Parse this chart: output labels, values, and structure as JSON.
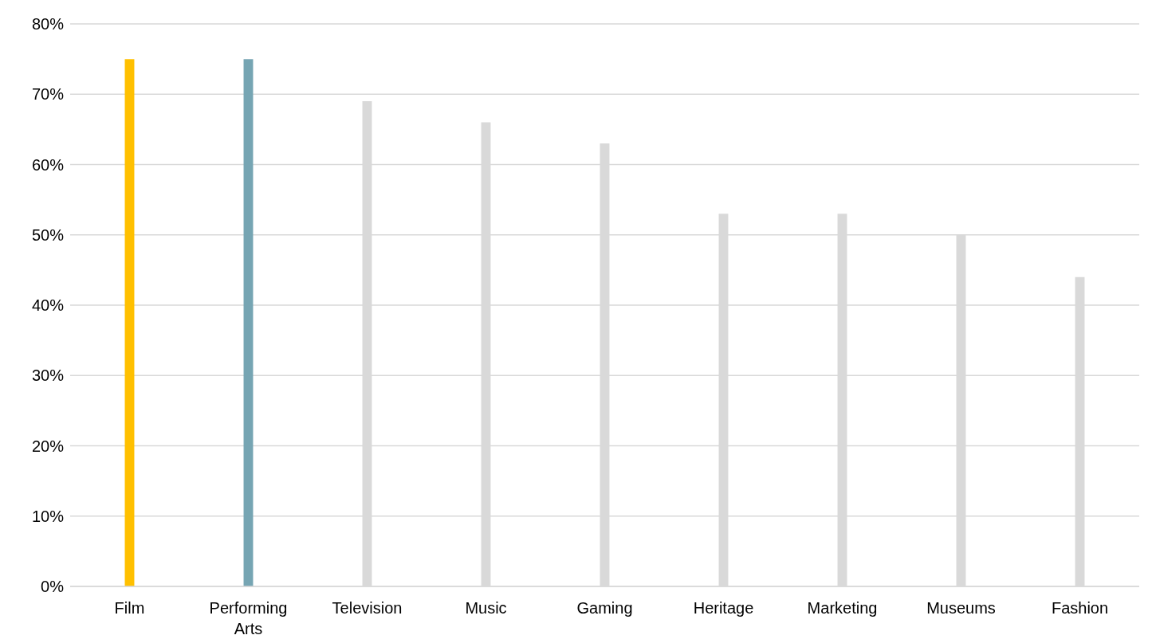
{
  "chart_data": {
    "type": "bar",
    "categories": [
      "Film",
      "Performing Arts",
      "Television",
      "Music",
      "Gaming",
      "Heritage",
      "Marketing",
      "Museums",
      "Fashion"
    ],
    "values": [
      75,
      75,
      69,
      66,
      63,
      53,
      53,
      50,
      44
    ],
    "colors": [
      "#ffc000",
      "#76a5b3",
      "#d9d9d9",
      "#d9d9d9",
      "#d9d9d9",
      "#d9d9d9",
      "#d9d9d9",
      "#d9d9d9",
      "#d9d9d9"
    ],
    "ylim": [
      0,
      80
    ],
    "yticks": [
      {
        "value": 0,
        "label": "0%"
      },
      {
        "value": 10,
        "label": "10%"
      },
      {
        "value": 20,
        "label": "20%"
      },
      {
        "value": 30,
        "label": "30%"
      },
      {
        "value": 40,
        "label": "40%"
      },
      {
        "value": 50,
        "label": "50%"
      },
      {
        "value": 60,
        "label": "60%"
      },
      {
        "value": 70,
        "label": "70%"
      },
      {
        "value": 80,
        "label": "80%"
      }
    ],
    "grid": "y"
  }
}
